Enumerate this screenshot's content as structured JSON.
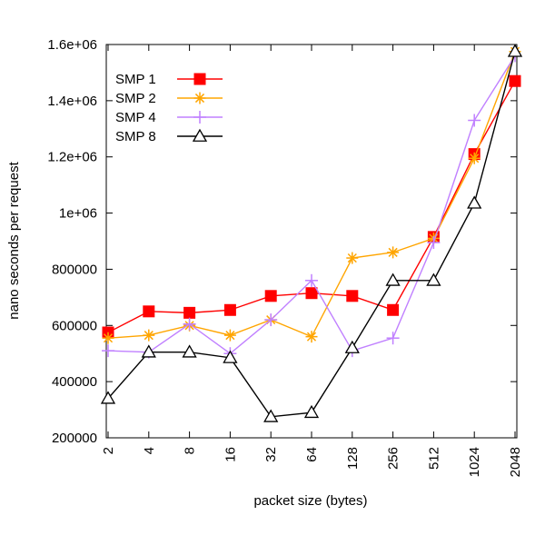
{
  "chart_data": {
    "type": "line",
    "title": "",
    "xlabel": "packet size (bytes)",
    "ylabel": "nano seconds per request",
    "categories": [
      "2",
      "4",
      "8",
      "16",
      "32",
      "64",
      "128",
      "256",
      "512",
      "1024",
      "2048"
    ],
    "ylim": [
      200000,
      1600000
    ],
    "yticks": [
      200000,
      400000,
      600000,
      800000,
      1000000,
      1200000,
      1400000,
      1600000
    ],
    "ytick_labels": [
      "200000",
      "400000",
      "600000",
      "800000",
      "1e+06",
      "1.2e+06",
      "1.4e+06",
      "1.6e+06"
    ],
    "grid": false,
    "legend_position": "top-left",
    "series": [
      {
        "name": "SMP 1",
        "color": "#ff0000",
        "marker": "filled-square",
        "values": [
          575000,
          650000,
          645000,
          655000,
          705000,
          715000,
          705000,
          655000,
          915000,
          1210000,
          1470000
        ]
      },
      {
        "name": "SMP 2",
        "color": "#ffa500",
        "marker": "asterisk",
        "values": [
          555000,
          565000,
          600000,
          565000,
          620000,
          560000,
          840000,
          860000,
          910000,
          1195000,
          1575000
        ]
      },
      {
        "name": "SMP 4",
        "color": "#c080ff",
        "marker": "plus",
        "values": [
          510000,
          505000,
          605000,
          500000,
          620000,
          760000,
          510000,
          555000,
          895000,
          1330000,
          1560000
        ]
      },
      {
        "name": "SMP 8",
        "color": "#000000",
        "marker": "open-triangle",
        "values": [
          340000,
          505000,
          505000,
          485000,
          275000,
          290000,
          520000,
          760000,
          760000,
          1035000,
          1575000
        ]
      }
    ]
  }
}
